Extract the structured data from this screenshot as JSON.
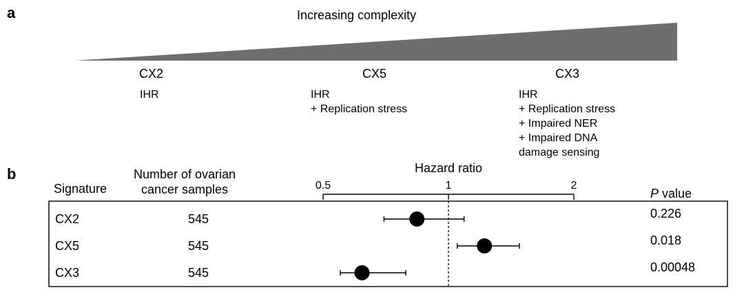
{
  "panel_a": {
    "label": "a",
    "title": "Increasing complexity",
    "signatures": [
      {
        "name": "CX2",
        "lines": [
          "IHR"
        ]
      },
      {
        "name": "CX5",
        "lines": [
          "IHR",
          "+ Replication stress"
        ]
      },
      {
        "name": "CX3",
        "lines": [
          "IHR",
          "+ Replication stress",
          "+ Impaired NER",
          "+ Impaired DNA",
          "damage sensing"
        ]
      }
    ],
    "wedge_color": "#6e6e6e"
  },
  "panel_b": {
    "label": "b",
    "col_signature": "Signature",
    "col_samples_line1": "Number of ovarian",
    "col_samples_line2": "cancer samples",
    "col_pvalue_italic": "P",
    "col_pvalue_rest": " value"
  },
  "chart_data": {
    "type": "forest",
    "title": "Hazard ratio",
    "xscale": "log",
    "xlim": [
      0.5,
      2
    ],
    "xticks": [
      0.5,
      1,
      2
    ],
    "xtick_labels": [
      "0.5",
      "1",
      "2"
    ],
    "reference_line": 1,
    "rows": [
      {
        "signature": "CX2",
        "samples": "545",
        "hr": 0.84,
        "ci": [
          0.7,
          1.09
        ],
        "p": "0.226"
      },
      {
        "signature": "CX5",
        "samples": "545",
        "hr": 1.22,
        "ci": [
          1.05,
          1.48
        ],
        "p": "0.018"
      },
      {
        "signature": "CX3",
        "samples": "545",
        "hr": 0.62,
        "ci": [
          0.55,
          0.79
        ],
        "p": "0.00048"
      }
    ]
  }
}
